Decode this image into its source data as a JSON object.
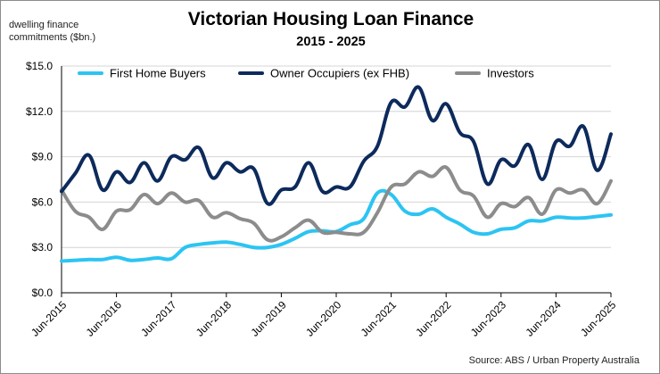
{
  "chart_data": {
    "type": "line",
    "title": "Victorian Housing Loan Finance",
    "subtitle": "2015 - 2025",
    "ylabel": "dwelling finance commitments ($bn.)",
    "source": "Source: ABS / Urban Property Australia",
    "ylim": [
      0,
      15
    ],
    "y_ticks": [
      "$0.0",
      "$3.0",
      "$6.0",
      "$9.0",
      "$12.0",
      "$15.0"
    ],
    "y_tick_values": [
      0,
      3,
      6,
      9,
      12,
      15
    ],
    "x_start": 2015.5,
    "x_end": 2025.5,
    "x_ticks": [
      "Jun-2015",
      "Jun-2016",
      "Jun-2017",
      "Jun-2018",
      "Jun-2019",
      "Jun-2020",
      "Jun-2021",
      "Jun-2022",
      "Jun-2023",
      "Jun-2024",
      "Jun-2025"
    ],
    "x_tick_values": [
      2015.5,
      2016.5,
      2017.5,
      2018.5,
      2019.5,
      2020.5,
      2021.5,
      2022.5,
      2023.5,
      2024.5,
      2025.5
    ],
    "grid": "horizontal",
    "legend_position": "top",
    "series": [
      {
        "name": "First Home Buyers",
        "color": "#2cc4f2",
        "x": [
          2015.5,
          2015.75,
          2016.0,
          2016.25,
          2016.5,
          2016.75,
          2017.0,
          2017.25,
          2017.5,
          2017.75,
          2018.0,
          2018.25,
          2018.5,
          2018.75,
          2019.0,
          2019.25,
          2019.5,
          2019.75,
          2020.0,
          2020.25,
          2020.5,
          2020.75,
          2021.0,
          2021.25,
          2021.5,
          2021.75,
          2022.0,
          2022.25,
          2022.5,
          2022.75,
          2023.0,
          2023.25,
          2023.5,
          2023.75,
          2024.0,
          2024.25,
          2024.5,
          2024.75,
          2025.0,
          2025.25,
          2025.5
        ],
        "y": [
          2.1,
          2.15,
          2.2,
          2.2,
          2.35,
          2.15,
          2.2,
          2.3,
          2.25,
          3.0,
          3.2,
          3.3,
          3.35,
          3.2,
          3.0,
          3.0,
          3.2,
          3.6,
          4.05,
          4.1,
          4.05,
          4.5,
          4.9,
          6.6,
          6.5,
          5.4,
          5.2,
          5.55,
          5.0,
          4.55,
          4.0,
          3.9,
          4.2,
          4.3,
          4.75,
          4.75,
          5.0,
          4.95,
          4.95,
          5.05,
          5.15
        ]
      },
      {
        "name": "Owner Occupiers (ex FHB)",
        "color": "#0d2a5c",
        "x": [
          2015.5,
          2015.75,
          2016.0,
          2016.25,
          2016.5,
          2016.75,
          2017.0,
          2017.25,
          2017.5,
          2017.75,
          2018.0,
          2018.25,
          2018.5,
          2018.75,
          2019.0,
          2019.25,
          2019.5,
          2019.75,
          2020.0,
          2020.25,
          2020.5,
          2020.75,
          2021.0,
          2021.25,
          2021.5,
          2021.75,
          2022.0,
          2022.25,
          2022.5,
          2022.75,
          2023.0,
          2023.25,
          2023.5,
          2023.75,
          2024.0,
          2024.25,
          2024.5,
          2024.75,
          2025.0,
          2025.25,
          2025.5
        ],
        "y": [
          6.7,
          7.9,
          9.1,
          6.8,
          8.0,
          7.3,
          8.6,
          7.4,
          9.0,
          8.8,
          9.6,
          7.6,
          8.6,
          8.0,
          8.2,
          5.9,
          6.8,
          7.0,
          8.6,
          6.7,
          7.0,
          7.0,
          8.7,
          9.7,
          12.6,
          12.3,
          13.6,
          11.4,
          12.5,
          10.6,
          10.0,
          7.2,
          8.8,
          8.4,
          9.8,
          7.5,
          10.0,
          9.7,
          11.0,
          8.1,
          10.5
        ]
      },
      {
        "name": "Investors",
        "color": "#8c8c8c",
        "x": [
          2015.5,
          2015.75,
          2016.0,
          2016.25,
          2016.5,
          2016.75,
          2017.0,
          2017.25,
          2017.5,
          2017.75,
          2018.0,
          2018.25,
          2018.5,
          2018.75,
          2019.0,
          2019.25,
          2019.5,
          2019.75,
          2020.0,
          2020.25,
          2020.5,
          2020.75,
          2021.0,
          2021.25,
          2021.5,
          2021.75,
          2022.0,
          2022.25,
          2022.5,
          2022.75,
          2023.0,
          2023.25,
          2023.5,
          2023.75,
          2024.0,
          2024.25,
          2024.5,
          2024.75,
          2025.0,
          2025.25,
          2025.5
        ],
        "y": [
          6.8,
          5.4,
          5.0,
          4.2,
          5.4,
          5.5,
          6.5,
          5.9,
          6.6,
          6.0,
          6.1,
          5.0,
          5.3,
          4.9,
          4.6,
          3.5,
          3.7,
          4.3,
          4.8,
          4.0,
          4.0,
          3.9,
          4.0,
          5.3,
          7.0,
          7.2,
          8.0,
          7.7,
          8.3,
          6.8,
          6.4,
          5.0,
          5.9,
          5.7,
          6.3,
          5.2,
          6.8,
          6.6,
          6.8,
          5.9,
          7.4
        ]
      }
    ]
  }
}
